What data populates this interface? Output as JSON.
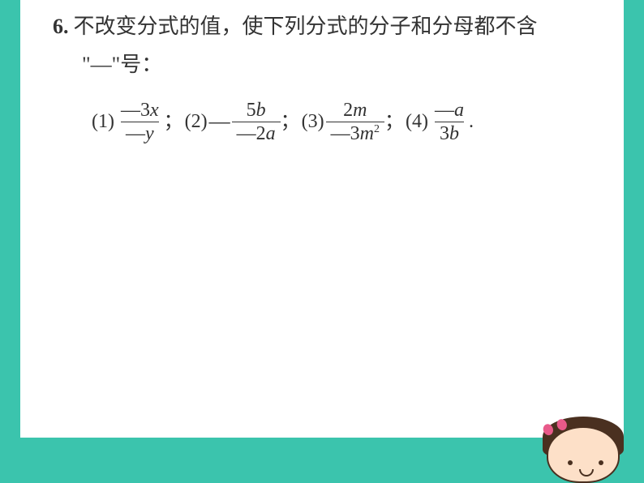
{
  "background_color": "#3bc4ad",
  "page_color": "#ffffff",
  "text_color": "#333333",
  "problem": {
    "number": "6.",
    "text_line1": "不改变分式的值，使下列分式的分子和分母都不含",
    "text_line2": "\"—\"号："
  },
  "parts": [
    {
      "label": "(1)",
      "leading_minus": "",
      "numerator": "—3x",
      "denominator": "—y",
      "terminator": "；"
    },
    {
      "label": "(2)",
      "leading_minus": "—",
      "numerator": "5b",
      "denominator": "—2a",
      "terminator": "；"
    },
    {
      "label": "(3)",
      "leading_minus": "",
      "numerator": "2m",
      "denominator": "—3m²",
      "terminator": "；"
    },
    {
      "label": "(4)",
      "leading_minus": "",
      "numerator": "—a",
      "denominator": "3b",
      "terminator": "."
    }
  ],
  "character": {
    "skin_color": "#fde0c8",
    "hair_color": "#4a3020",
    "bow_color": "#e85a8a"
  }
}
